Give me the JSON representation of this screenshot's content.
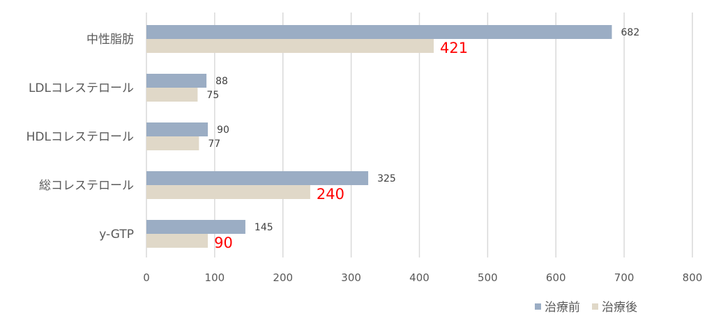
{
  "chart_data": {
    "type": "bar",
    "orientation": "horizontal",
    "title": "",
    "xlabel": "",
    "ylabel": "",
    "xlim": [
      0,
      800
    ],
    "xticks": [
      0,
      100,
      200,
      300,
      400,
      500,
      600,
      700,
      800
    ],
    "grid": true,
    "legend_position": "bottom-right",
    "categories": [
      "中性脂肪",
      "LDLコレステロール",
      "HDLコレステロール",
      "総コレステロール",
      "y-GTP"
    ],
    "series": [
      {
        "name": "治療前",
        "color": "#9badc4",
        "values": [
          682,
          88,
          90,
          325,
          145
        ],
        "highlight": [
          false,
          false,
          false,
          false,
          false
        ]
      },
      {
        "name": "治療後",
        "color": "#e0d8c8",
        "values": [
          421,
          75,
          77,
          240,
          90
        ],
        "highlight": [
          true,
          false,
          false,
          true,
          true
        ]
      }
    ]
  }
}
